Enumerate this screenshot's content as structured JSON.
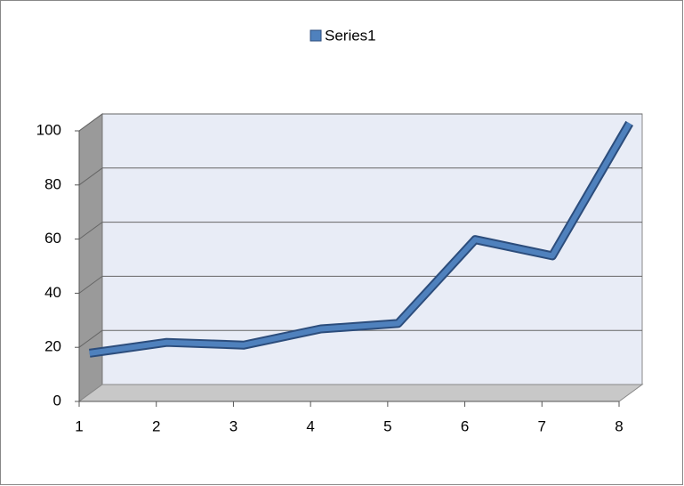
{
  "chart_data": {
    "type": "line3d",
    "x": [
      1,
      2,
      3,
      4,
      5,
      6,
      7,
      8
    ],
    "series": [
      {
        "name": "Series1",
        "color": "#4f81bd",
        "values": [
          15,
          19,
          18,
          24,
          26,
          57,
          51,
          100
        ]
      }
    ],
    "xlim": [
      1,
      8
    ],
    "xticks": [
      1,
      2,
      3,
      4,
      5,
      6,
      7,
      8
    ],
    "ylim": [
      0,
      100
    ],
    "yticks": [
      0,
      20,
      40,
      60,
      80,
      100
    ],
    "grid": true,
    "legend": "top"
  }
}
